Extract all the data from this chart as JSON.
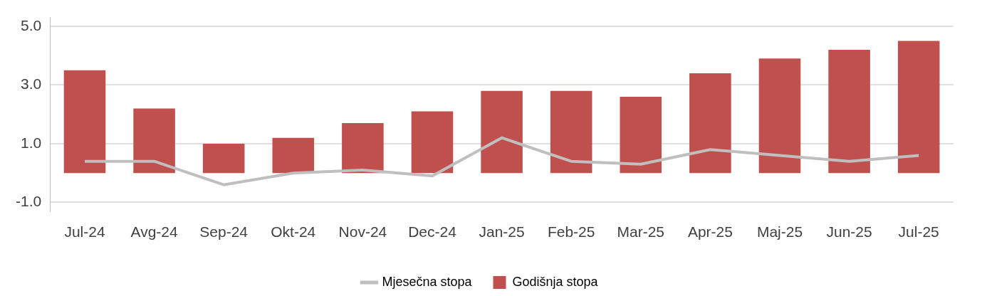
{
  "chart_data": {
    "type": "bar",
    "categories": [
      "Jul-24",
      "Avg-24",
      "Sep-24",
      "Okt-24",
      "Nov-24",
      "Dec-24",
      "Jan-25",
      "Feb-25",
      "Mar-25",
      "Apr-25",
      "Maj-25",
      "Jun-25",
      "Jul-25"
    ],
    "series": [
      {
        "name": "Mjesečna stopa",
        "type": "line",
        "color": "#bfbfbf",
        "values": [
          0.4,
          0.4,
          -0.4,
          0.0,
          0.1,
          -0.1,
          1.2,
          0.4,
          0.3,
          0.8,
          0.6,
          0.4,
          0.6
        ]
      },
      {
        "name": "Godišnja stopa",
        "color": "#c0504d",
        "values": [
          3.5,
          2.2,
          1.0,
          1.2,
          1.7,
          2.1,
          2.8,
          2.8,
          2.6,
          3.4,
          3.9,
          4.2,
          4.5
        ]
      }
    ],
    "ylim": [
      -1.3,
      5.3
    ],
    "yticks": [
      {
        "value": -1,
        "label": "-1.0"
      },
      {
        "value": 1,
        "label": "1.0"
      },
      {
        "value": 3,
        "label": "3.0"
      },
      {
        "value": 5,
        "label": "5.0"
      }
    ],
    "grid": "y",
    "legend": "bottom",
    "marker": "none"
  }
}
